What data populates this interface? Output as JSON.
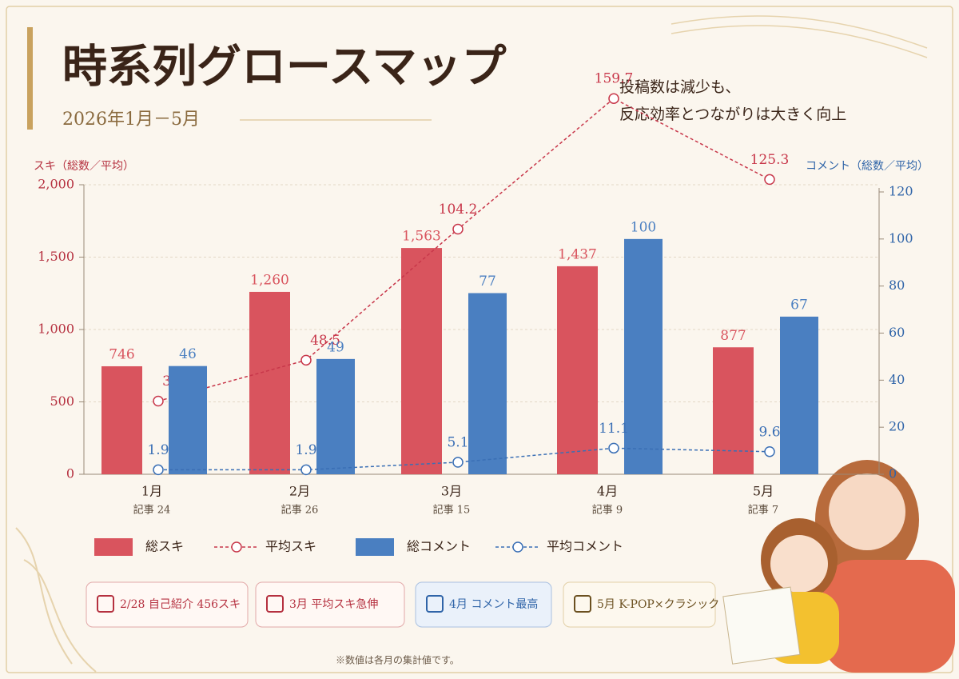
{
  "chart_data": {
    "type": "bar",
    "title": "時系列グロースマップ",
    "subtitle": "2026年1月－5月",
    "headline": [
      "投稿数は減少も、",
      "反応効率とつながりは大きく向上"
    ],
    "ylabel": "スキ（総数／平均）",
    "y2label": "コメント（総数／平均）",
    "categories": [
      "1月",
      "2月",
      "3月",
      "4月",
      "5月"
    ],
    "subcategories": [
      "記事 24",
      "記事 26",
      "記事 15",
      "記事 9",
      "記事 7"
    ],
    "series": [
      {
        "name": "総スキ",
        "type": "bar",
        "color": "#d9545e",
        "values": [
          746,
          1260,
          1563,
          1437,
          877
        ],
        "value_labels": [
          "746",
          "1,260",
          "1,563",
          "1,437",
          "877"
        ]
      },
      {
        "name": "平均スキ",
        "type": "line",
        "color": "#c8374a",
        "axis": "y2",
        "values": [
          31.1,
          48.5,
          104.2,
          159.7,
          125.3
        ]
      },
      {
        "name": "総コメント",
        "type": "bar",
        "color": "#4a7fc1",
        "axis": "y2",
        "values": [
          46,
          49,
          77,
          100,
          67
        ]
      },
      {
        "name": "平均コメント",
        "type": "line",
        "color": "#3a6fb5",
        "axis": "y2",
        "values": [
          1.9,
          1.9,
          5.1,
          11.1,
          9.6
        ]
      }
    ],
    "ylim": [
      0,
      2000
    ],
    "yticks": [
      0,
      500,
      {
        "value": 1000,
        "label": "1,000"
      },
      {
        "value": 1500,
        "label": "1,500"
      },
      {
        "value": 2000,
        "label": "2,000"
      }
    ],
    "y2lim": [
      0,
      120
    ],
    "y2ticks": [
      0,
      20,
      40,
      60,
      80,
      100,
      120
    ],
    "grid": true
  },
  "callouts": [
    "2/28 自己紹介 456スキ",
    "3月 平均スキ急伸",
    "4月 コメント最高",
    "5月 K-POP×クラシック"
  ],
  "footnote": "※数値は各月の集計値です。"
}
